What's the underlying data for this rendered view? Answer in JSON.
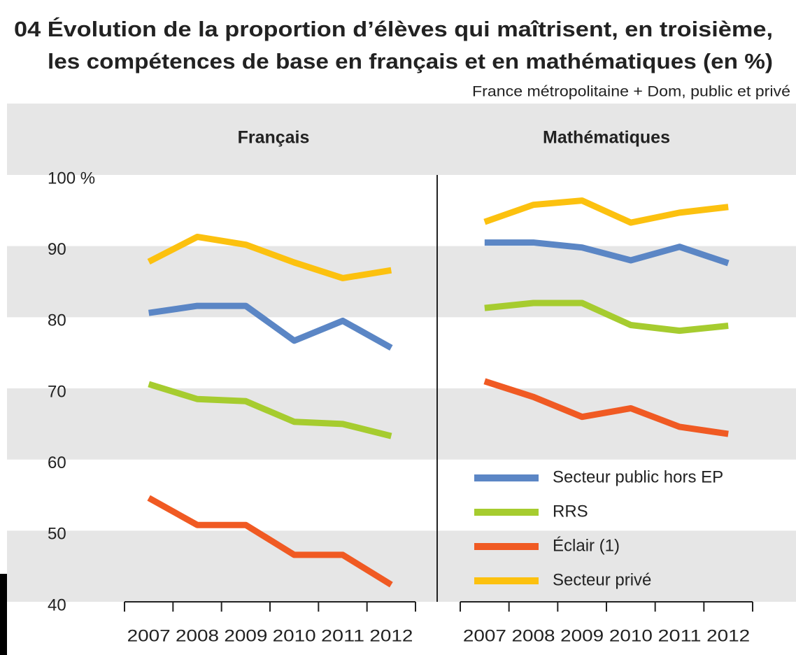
{
  "title": [
    "04 Évolution de la proportion d’élèves qui maîtrisent, en troisième,",
    "les compétences de base en français et en mathématiques (en %)"
  ],
  "subtitle": "France métropolitaine + Dom, public et privé",
  "chart_data": [
    {
      "type": "line",
      "title": "Français",
      "categories": [
        "2007",
        "2008",
        "2009",
        "2010",
        "2011",
        "2012"
      ],
      "ylim": [
        40,
        100
      ],
      "yticks": [
        40,
        50,
        60,
        70,
        80,
        90,
        {
          "value": 100,
          "label": "100 %"
        }
      ],
      "series": [
        {
          "name": "Secteur public hors EP",
          "color": "#5b86c5",
          "values": [
            80.6,
            81.6,
            81.6,
            76.7,
            79.5,
            75.7
          ]
        },
        {
          "name": "RRS",
          "color": "#a6cc2f",
          "values": [
            70.6,
            68.5,
            68.2,
            65.3,
            65.0,
            63.3
          ]
        },
        {
          "name": "Éclair (1)",
          "color": "#f05a23",
          "values": [
            54.6,
            50.8,
            50.8,
            46.6,
            46.6,
            42.4
          ]
        },
        {
          "name": "Secteur privé",
          "color": "#fcc10f",
          "values": [
            87.8,
            91.3,
            90.2,
            87.7,
            85.5,
            86.6
          ]
        }
      ]
    },
    {
      "type": "line",
      "title": "Mathématiques",
      "categories": [
        "2007",
        "2008",
        "2009",
        "2010",
        "2011",
        "2012"
      ],
      "ylim": [
        40,
        100
      ],
      "legend": "lower right",
      "series": [
        {
          "name": "Secteur public hors EP",
          "color": "#5b86c5",
          "values": [
            90.5,
            90.5,
            89.8,
            88.0,
            89.9,
            87.6
          ]
        },
        {
          "name": "RRS",
          "color": "#a6cc2f",
          "values": [
            81.3,
            82.0,
            82.0,
            78.9,
            78.1,
            78.8
          ]
        },
        {
          "name": "Éclair (1)",
          "color": "#f05a23",
          "values": [
            71.0,
            68.8,
            66.0,
            67.2,
            64.6,
            63.6
          ]
        },
        {
          "name": "Secteur privé",
          "color": "#fcc10f",
          "values": [
            93.4,
            95.8,
            96.4,
            93.3,
            94.7,
            95.5
          ]
        }
      ]
    }
  ]
}
